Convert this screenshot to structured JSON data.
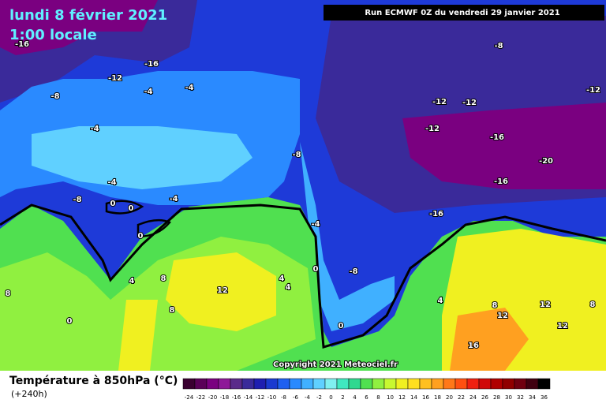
{
  "header": {
    "title": "lundi 8 février 2021",
    "time": "1:00 locale",
    "run": "Run ECMWF 0Z du vendredi 29 janvier 2021",
    "copyright": "Copyright 2021 Meteociel.fr"
  },
  "map": {
    "contour_labels": [
      -16,
      -16,
      -12,
      -8,
      -4,
      -4,
      -4,
      -4,
      -8,
      0,
      0,
      -4,
      0,
      -8,
      -4,
      0,
      -8,
      -8,
      -12,
      -12,
      -12,
      -12,
      -16,
      -20,
      -16,
      -16,
      8,
      4,
      4,
      4,
      12,
      8,
      8,
      0,
      0,
      4,
      8,
      12,
      12,
      8,
      12,
      16
    ]
  },
  "legend": {
    "title": "Température à 850hPa (°C)",
    "subtitle": "(+240h)",
    "labels": [
      -24,
      -22,
      -20,
      -18,
      -16,
      -14,
      -12,
      -10,
      -8,
      -6,
      -4,
      -2,
      0,
      2,
      4,
      6,
      8,
      10,
      12,
      14,
      16,
      18,
      20,
      22,
      24,
      26,
      28,
      30,
      32,
      34,
      36
    ],
    "colors": [
      "#3a0030",
      "#5a0058",
      "#7a0080",
      "#8e1898",
      "#5a2a8a",
      "#3a2a9a",
      "#1e1eb0",
      "#1a3ad0",
      "#1e60f0",
      "#2a8aff",
      "#40b0ff",
      "#60d0ff",
      "#80f0f0",
      "#40e8c0",
      "#30d890",
      "#50e050",
      "#90f040",
      "#c8f830",
      "#f0f020",
      "#ffe020",
      "#ffc020",
      "#ffa020",
      "#ff7818",
      "#ff5010",
      "#f02010",
      "#d00808",
      "#b00000",
      "#900000",
      "#700010",
      "#400010",
      "#000000"
    ]
  }
}
